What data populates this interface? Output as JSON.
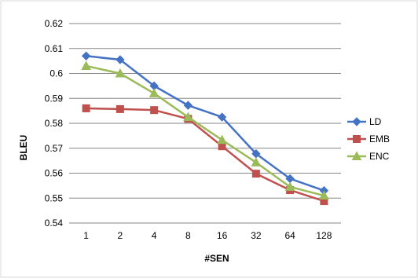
{
  "chart_data": {
    "type": "line",
    "title": "",
    "xlabel": "#SEN",
    "ylabel": "BLEU",
    "categories": [
      "1",
      "2",
      "4",
      "8",
      "16",
      "32",
      "64",
      "128"
    ],
    "ylim": [
      0.54,
      0.62
    ],
    "yticks": [
      "0.54",
      "0.55",
      "0.56",
      "0.57",
      "0.58",
      "0.59",
      "0.6",
      "0.61",
      "0.62"
    ],
    "grid": "horizontal",
    "legend_position": "right",
    "series": [
      {
        "name": "LD",
        "color": "#4472C4",
        "marker": "diamond",
        "values": [
          0.607,
          0.6055,
          0.595,
          0.5872,
          0.5825,
          0.5678,
          0.5578,
          0.553
        ]
      },
      {
        "name": "EMB",
        "color": "#C0504D",
        "marker": "square",
        "values": [
          0.586,
          0.5857,
          0.5853,
          0.5818,
          0.5708,
          0.5598,
          0.5532,
          0.5488
        ]
      },
      {
        "name": "ENC",
        "color": "#9BBB59",
        "marker": "triangle",
        "values": [
          0.603,
          0.6,
          0.592,
          0.5825,
          0.5733,
          0.5643,
          0.5545,
          0.551
        ]
      }
    ]
  }
}
